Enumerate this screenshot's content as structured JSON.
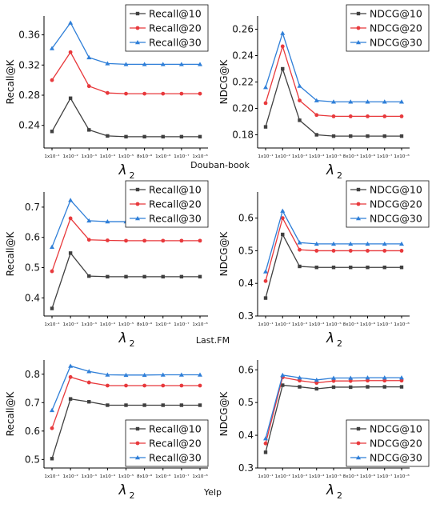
{
  "figure": {
    "x_axis_label": "λ",
    "x_axis_subscript": "2",
    "groups": [
      "Douban-book",
      "Last.FM",
      "Yelp"
    ]
  },
  "chart_data": [
    {
      "type": "line",
      "dataset": "Douban-book",
      "title": "",
      "xlabel": "λ2",
      "ylabel": "Recall@K",
      "ylim": [
        0.21,
        0.385
      ],
      "yticks": [
        0.24,
        0.28,
        0.32,
        0.36
      ],
      "ytick_labels": [
        "0.24",
        "0.28",
        "0.32",
        "0.36"
      ],
      "legend": "top-right",
      "categories": [
        "1x10⁻¹",
        "1x10⁻²",
        "1x10⁻³",
        "1x10⁻⁴",
        "1x10⁻⁵",
        "8x10⁻⁶",
        "1x10⁻⁶",
        "1x10⁻⁷",
        "1x10⁻⁸"
      ],
      "series": [
        {
          "name": "Recall@10",
          "color": "#404040",
          "marker": "square",
          "values": [
            0.232,
            0.276,
            0.234,
            0.226,
            0.225,
            0.225,
            0.225,
            0.225,
            0.225
          ]
        },
        {
          "name": "Recall@20",
          "color": "#e8393c",
          "marker": "circle",
          "values": [
            0.3,
            0.337,
            0.292,
            0.283,
            0.282,
            0.282,
            0.282,
            0.282,
            0.282
          ]
        },
        {
          "name": "Recall@30",
          "color": "#2f7fd8",
          "marker": "triangle",
          "values": [
            0.342,
            0.376,
            0.33,
            0.322,
            0.321,
            0.321,
            0.321,
            0.321,
            0.321
          ]
        }
      ]
    },
    {
      "type": "line",
      "dataset": "Douban-book",
      "title": "",
      "xlabel": "λ2",
      "ylabel": "NDCG@K",
      "ylim": [
        0.17,
        0.27
      ],
      "yticks": [
        0.18,
        0.2,
        0.22,
        0.24,
        0.26
      ],
      "ytick_labels": [
        "0.18",
        "0.20",
        "0.22",
        "0.24",
        "0.26"
      ],
      "legend": "top-right",
      "categories": [
        "1x10⁻¹",
        "1x10⁻²",
        "1x10⁻³",
        "1x10⁻⁴",
        "1x10⁻⁵",
        "8x10⁻⁶",
        "1x10⁻⁶",
        "1x10⁻⁷",
        "1x10⁻⁸"
      ],
      "series": [
        {
          "name": "NDCG@10",
          "color": "#404040",
          "marker": "square",
          "values": [
            0.186,
            0.23,
            0.191,
            0.18,
            0.179,
            0.179,
            0.179,
            0.179,
            0.179
          ]
        },
        {
          "name": "NDCG@20",
          "color": "#e8393c",
          "marker": "circle",
          "values": [
            0.204,
            0.247,
            0.206,
            0.195,
            0.194,
            0.194,
            0.194,
            0.194,
            0.194
          ]
        },
        {
          "name": "NDCG@30",
          "color": "#2f7fd8",
          "marker": "triangle",
          "values": [
            0.216,
            0.257,
            0.217,
            0.206,
            0.205,
            0.205,
            0.205,
            0.205,
            0.205
          ]
        }
      ]
    },
    {
      "type": "line",
      "dataset": "Last.FM",
      "title": "",
      "xlabel": "λ2",
      "ylabel": "Recall@K",
      "ylim": [
        0.34,
        0.75
      ],
      "yticks": [
        0.4,
        0.5,
        0.6,
        0.7
      ],
      "ytick_labels": [
        "0.4",
        "0.5",
        "0.6",
        "0.7"
      ],
      "legend": "top-right",
      "categories": [
        "1x10⁻¹",
        "1x10⁻²",
        "1x10⁻³",
        "1x10⁻⁴",
        "1x10⁻⁵",
        "8x10⁻⁶",
        "1x10⁻⁶",
        "1x10⁻⁷",
        "1x10⁻⁸"
      ],
      "series": [
        {
          "name": "Recall@10",
          "color": "#404040",
          "marker": "square",
          "values": [
            0.365,
            0.548,
            0.472,
            0.47,
            0.47,
            0.47,
            0.47,
            0.47,
            0.47
          ]
        },
        {
          "name": "Recall@20",
          "color": "#e8393c",
          "marker": "circle",
          "values": [
            0.488,
            0.663,
            0.592,
            0.59,
            0.589,
            0.589,
            0.589,
            0.589,
            0.589
          ]
        },
        {
          "name": "Recall@30",
          "color": "#2f7fd8",
          "marker": "triangle",
          "values": [
            0.568,
            0.723,
            0.655,
            0.652,
            0.652,
            0.652,
            0.652,
            0.652,
            0.652
          ]
        }
      ]
    },
    {
      "type": "line",
      "dataset": "Last.FM",
      "title": "",
      "xlabel": "λ2",
      "ylabel": "NDCG@K",
      "ylim": [
        0.3,
        0.68
      ],
      "yticks": [
        0.3,
        0.4,
        0.5,
        0.6
      ],
      "ytick_labels": [
        "0.3",
        "0.4",
        "0.5",
        "0.6"
      ],
      "legend": "top-right",
      "categories": [
        "1x10⁻¹",
        "1x10⁻²",
        "1x10⁻³",
        "1x10⁻⁴",
        "1x10⁻⁵",
        "8x10⁻⁶",
        "1x10⁻⁶",
        "1x10⁻⁷",
        "1x10⁻⁸"
      ],
      "series": [
        {
          "name": "NDCG@10",
          "color": "#404040",
          "marker": "square",
          "values": [
            0.355,
            0.55,
            0.452,
            0.449,
            0.449,
            0.449,
            0.449,
            0.449,
            0.449
          ]
        },
        {
          "name": "NDCG@20",
          "color": "#e8393c",
          "marker": "circle",
          "values": [
            0.407,
            0.6,
            0.503,
            0.5,
            0.5,
            0.5,
            0.5,
            0.5,
            0.5
          ]
        },
        {
          "name": "NDCG@30",
          "color": "#2f7fd8",
          "marker": "triangle",
          "values": [
            0.436,
            0.622,
            0.525,
            0.521,
            0.521,
            0.521,
            0.521,
            0.521,
            0.521
          ]
        }
      ]
    },
    {
      "type": "line",
      "dataset": "Yelp",
      "title": "",
      "xlabel": "λ2",
      "ylabel": "Recall@K",
      "ylim": [
        0.47,
        0.85
      ],
      "yticks": [
        0.5,
        0.6,
        0.7,
        0.8
      ],
      "ytick_labels": [
        "0.5",
        "0.6",
        "0.7",
        "0.8"
      ],
      "legend": "bottom-right",
      "categories": [
        "1x10⁻¹",
        "1x10⁻²",
        "1x10⁻³",
        "1x10⁻⁴",
        "1x10⁻⁵",
        "8x10⁻⁶",
        "1x10⁻⁶",
        "1x10⁻⁷",
        "1x10⁻⁸"
      ],
      "series": [
        {
          "name": "Recall@10",
          "color": "#404040",
          "marker": "square",
          "values": [
            0.503,
            0.713,
            0.703,
            0.691,
            0.691,
            0.691,
            0.691,
            0.691,
            0.691
          ]
        },
        {
          "name": "Recall@20",
          "color": "#e8393c",
          "marker": "circle",
          "values": [
            0.61,
            0.79,
            0.771,
            0.76,
            0.76,
            0.76,
            0.76,
            0.76,
            0.76
          ]
        },
        {
          "name": "Recall@30",
          "color": "#2f7fd8",
          "marker": "triangle",
          "values": [
            0.673,
            0.829,
            0.81,
            0.798,
            0.797,
            0.797,
            0.798,
            0.798,
            0.798
          ]
        }
      ]
    },
    {
      "type": "line",
      "dataset": "Yelp",
      "title": "",
      "xlabel": "λ2",
      "ylabel": "NDCG@K",
      "ylim": [
        0.3,
        0.63
      ],
      "yticks": [
        0.3,
        0.4,
        0.5,
        0.6
      ],
      "ytick_labels": [
        "0.3",
        "0.4",
        "0.5",
        "0.6"
      ],
      "legend": "bottom-right",
      "categories": [
        "1x10⁻¹",
        "1x10⁻²",
        "1x10⁻³",
        "1x10⁻⁴",
        "1x10⁻⁵",
        "8x10⁻⁶",
        "1x10⁻⁶",
        "1x10⁻⁷",
        "1x10⁻⁸"
      ],
      "series": [
        {
          "name": "NDCG@10",
          "color": "#404040",
          "marker": "square",
          "values": [
            0.348,
            0.553,
            0.548,
            0.542,
            0.547,
            0.547,
            0.548,
            0.548,
            0.548
          ]
        },
        {
          "name": "NDCG@20",
          "color": "#e8393c",
          "marker": "circle",
          "values": [
            0.375,
            0.577,
            0.567,
            0.56,
            0.566,
            0.566,
            0.567,
            0.567,
            0.567
          ]
        },
        {
          "name": "NDCG@30",
          "color": "#2f7fd8",
          "marker": "triangle",
          "values": [
            0.39,
            0.584,
            0.576,
            0.569,
            0.575,
            0.575,
            0.576,
            0.576,
            0.576
          ]
        }
      ]
    }
  ]
}
